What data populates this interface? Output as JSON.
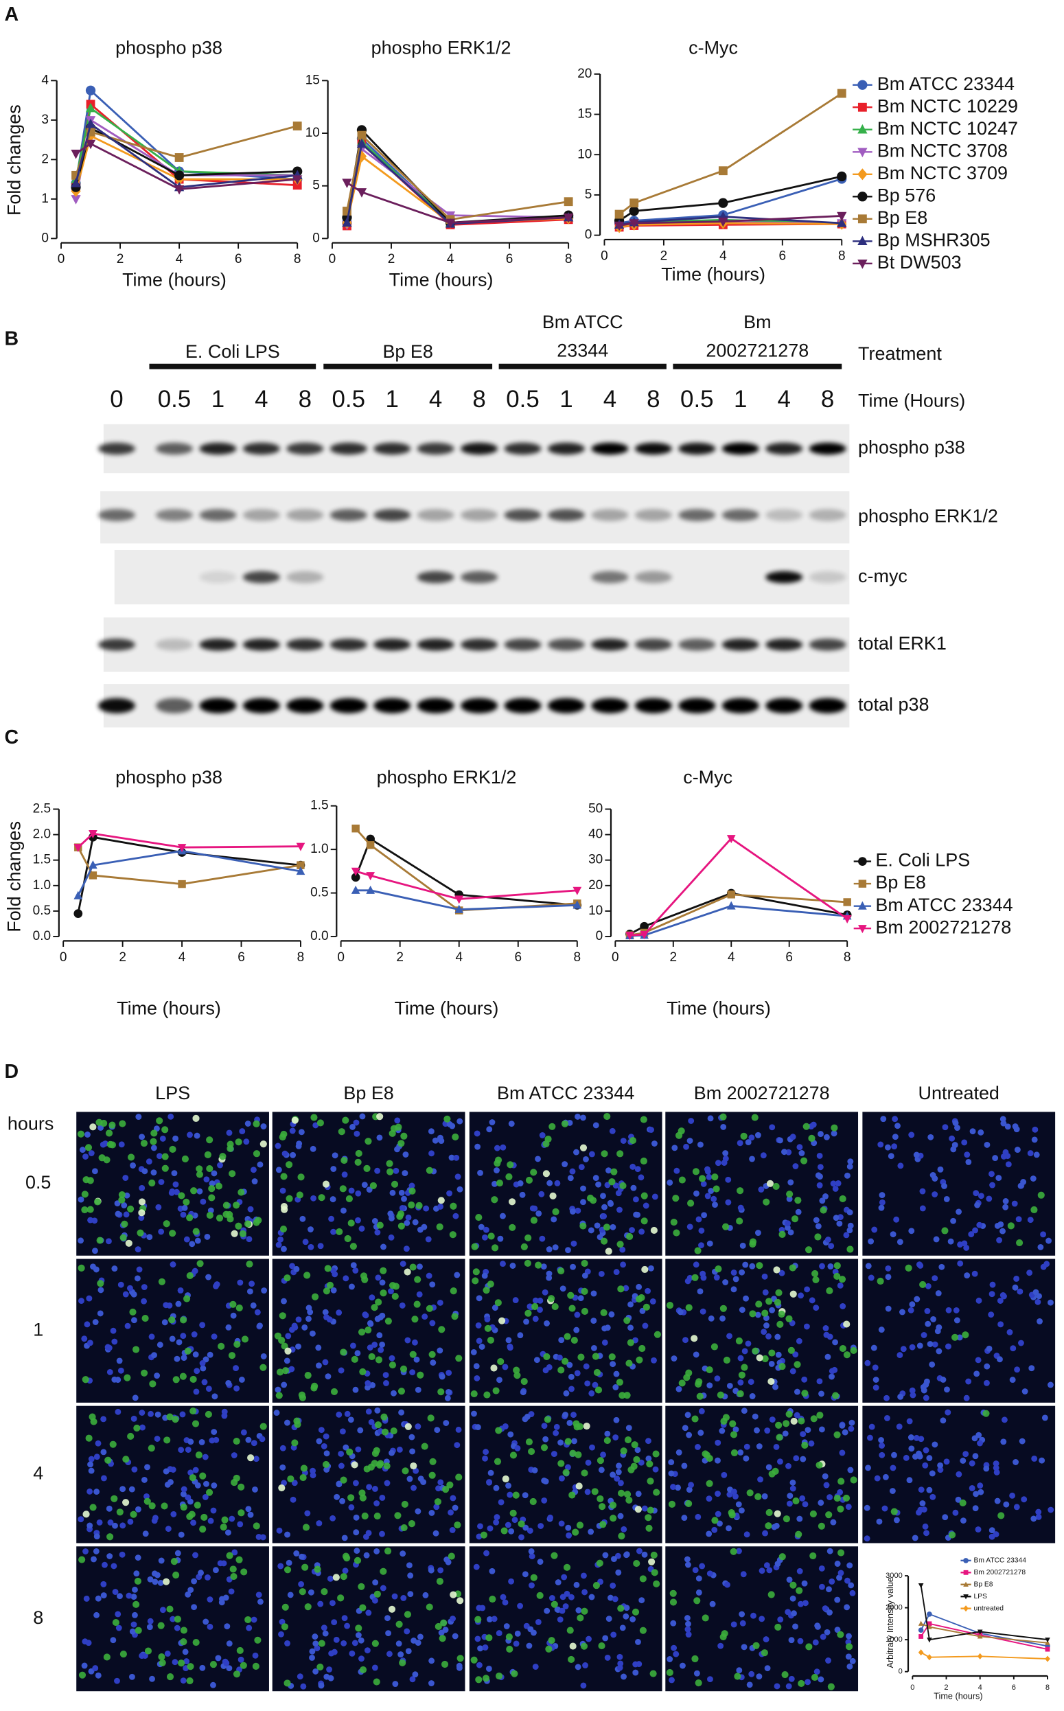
{
  "panel_labels": [
    "A",
    "B",
    "C",
    "D"
  ],
  "chart_data": [
    {
      "type": "line",
      "title": "phospho p38",
      "xlabel": "Time (hours)",
      "ylabel": "Fold changes",
      "x": [
        0.5,
        1,
        4,
        8
      ],
      "xlim": [
        0,
        8
      ],
      "xticks": [
        0,
        2,
        4,
        6,
        8
      ],
      "ylim": [
        0,
        4
      ],
      "yticks": [
        0,
        1,
        2,
        3,
        4
      ],
      "series": [
        {
          "color": "#3a5fb5",
          "marker": "circle",
          "values": [
            1.4,
            3.75,
            1.7,
            1.5
          ]
        },
        {
          "color": "#e8202a",
          "marker": "square",
          "values": [
            1.3,
            3.4,
            1.5,
            1.35
          ]
        },
        {
          "color": "#35b04a",
          "marker": "triangle",
          "values": [
            1.5,
            3.3,
            1.7,
            1.6
          ]
        },
        {
          "color": "#a05cc0",
          "marker": "triangle-down",
          "values": [
            1.0,
            3.0,
            1.6,
            1.6
          ]
        },
        {
          "color": "#f39a1e",
          "marker": "diamond",
          "values": [
            1.2,
            2.6,
            1.5,
            1.5
          ]
        },
        {
          "color": "#111111",
          "marker": "circle",
          "values": [
            1.3,
            2.8,
            1.6,
            1.7
          ]
        },
        {
          "color": "#a87a36",
          "marker": "square",
          "values": [
            1.6,
            2.7,
            2.05,
            2.85
          ]
        },
        {
          "color": "#2d2f7e",
          "marker": "triangle",
          "values": [
            1.4,
            2.9,
            1.3,
            1.6
          ]
        },
        {
          "color": "#6b1f5c",
          "marker": "triangle-down",
          "values": [
            2.15,
            2.4,
            1.25,
            1.5
          ]
        }
      ]
    },
    {
      "type": "line",
      "title": "phospho ERK1/2",
      "xlabel": "Time (hours)",
      "x": [
        0.5,
        1,
        4,
        8
      ],
      "xlim": [
        0,
        8
      ],
      "xticks": [
        0,
        2,
        4,
        6,
        8
      ],
      "ylim": [
        0,
        15
      ],
      "yticks": [
        0,
        5,
        10,
        15
      ],
      "series": [
        {
          "color": "#3a5fb5",
          "marker": "circle",
          "values": [
            1.5,
            9.5,
            1.5,
            2.0
          ]
        },
        {
          "color": "#e8202a",
          "marker": "square",
          "values": [
            1.2,
            9.0,
            1.3,
            1.8
          ]
        },
        {
          "color": "#35b04a",
          "marker": "triangle",
          "values": [
            1.5,
            9.2,
            1.5,
            2.0
          ]
        },
        {
          "color": "#a05cc0",
          "marker": "triangle-down",
          "values": [
            1.3,
            8.5,
            2.2,
            2.0
          ]
        },
        {
          "color": "#f39a1e",
          "marker": "diamond",
          "values": [
            1.5,
            7.8,
            1.5,
            1.9
          ]
        },
        {
          "color": "#111111",
          "marker": "circle",
          "values": [
            2.0,
            10.3,
            1.5,
            2.2
          ]
        },
        {
          "color": "#a87a36",
          "marker": "square",
          "values": [
            2.6,
            9.8,
            1.8,
            3.5
          ]
        },
        {
          "color": "#2d2f7e",
          "marker": "triangle",
          "values": [
            1.5,
            9.0,
            1.4,
            2.0
          ]
        },
        {
          "color": "#6b1f5c",
          "marker": "triangle-down",
          "values": [
            5.3,
            4.4,
            1.5,
            2.0
          ]
        }
      ]
    },
    {
      "type": "line",
      "title": "c-Myc",
      "xlabel": "Time (hours)",
      "legend": "right",
      "x": [
        0.5,
        1,
        4,
        8
      ],
      "xlim": [
        0,
        8
      ],
      "xticks": [
        0,
        2,
        4,
        6,
        8
      ],
      "ylim": [
        0,
        20
      ],
      "yticks": [
        0,
        5,
        10,
        15,
        20
      ],
      "series": [
        {
          "name": "Bm ATCC 23344",
          "color": "#3a5fb5",
          "marker": "circle",
          "values": [
            1.5,
            1.8,
            2.5,
            7.0
          ]
        },
        {
          "name": "Bm NCTC 10229",
          "color": "#e8202a",
          "marker": "square",
          "values": [
            1.0,
            1.2,
            1.3,
            1.4
          ]
        },
        {
          "name": "Bm NCTC 10247",
          "color": "#35b04a",
          "marker": "triangle",
          "values": [
            1.3,
            1.6,
            1.9,
            1.5
          ]
        },
        {
          "name": "Bm NCTC 3708",
          "color": "#a05cc0",
          "marker": "triangle-down",
          "values": [
            1.2,
            1.4,
            1.6,
            1.5
          ]
        },
        {
          "name": "Bm NCTC 3709",
          "color": "#f39a1e",
          "marker": "diamond",
          "values": [
            1.0,
            1.3,
            1.5,
            1.4
          ]
        },
        {
          "name": "Bp 576",
          "color": "#111111",
          "marker": "circle",
          "values": [
            1.8,
            3.0,
            4.0,
            7.3
          ]
        },
        {
          "name": "Bp E8",
          "color": "#a87a36",
          "marker": "square",
          "values": [
            2.6,
            4.0,
            8.0,
            17.6
          ]
        },
        {
          "name": "Bp MSHR305",
          "color": "#2d2f7e",
          "marker": "triangle",
          "values": [
            1.3,
            1.6,
            2.3,
            1.5
          ]
        },
        {
          "name": "Bt DW503",
          "color": "#6b1f5c",
          "marker": "triangle-down",
          "values": [
            1.2,
            1.5,
            1.7,
            2.4
          ]
        }
      ]
    },
    {
      "type": "line",
      "title": "phospho p38",
      "xlabel": "Time (hours)",
      "ylabel": "Fold changes",
      "x": [
        0.5,
        1,
        4,
        8
      ],
      "xlim": [
        0,
        8
      ],
      "xticks": [
        0,
        2,
        4,
        6,
        8
      ],
      "ylim": [
        0,
        2.5
      ],
      "yticks": [
        {
          "value": 0,
          "label": "0.0"
        },
        0.5,
        {
          "value": 1,
          "label": "1.0"
        },
        1.5,
        {
          "value": 2,
          "label": "2.0"
        },
        2.5
      ],
      "series": [
        {
          "color": "#111111",
          "marker": "circle",
          "values": [
            0.45,
            1.95,
            1.65,
            1.4
          ]
        },
        {
          "color": "#a87a36",
          "marker": "square",
          "values": [
            1.75,
            1.2,
            1.03,
            1.4
          ]
        },
        {
          "color": "#3a5fb5",
          "marker": "triangle",
          "values": [
            0.8,
            1.4,
            1.68,
            1.28
          ]
        },
        {
          "color": "#e6157f",
          "marker": "triangle-down",
          "values": [
            1.75,
            2.02,
            1.75,
            1.77
          ]
        }
      ]
    },
    {
      "type": "line",
      "title": "phospho ERK1/2",
      "xlabel": "Time (hours)",
      "x": [
        0.5,
        1,
        4,
        8
      ],
      "xlim": [
        0,
        8
      ],
      "xticks": [
        0,
        2,
        4,
        6,
        8
      ],
      "ylim": [
        0,
        1.5
      ],
      "yticks": [
        {
          "value": 0,
          "label": "0.0"
        },
        0.5,
        {
          "value": 1,
          "label": "1.0"
        },
        1.5
      ],
      "series": [
        {
          "color": "#111111",
          "marker": "circle",
          "values": [
            0.68,
            1.12,
            0.48,
            0.36
          ]
        },
        {
          "color": "#a87a36",
          "marker": "square",
          "values": [
            1.24,
            1.05,
            0.3,
            0.38
          ]
        },
        {
          "color": "#3a5fb5",
          "marker": "triangle",
          "values": [
            0.53,
            0.53,
            0.31,
            0.36
          ]
        },
        {
          "color": "#e6157f",
          "marker": "triangle-down",
          "values": [
            0.75,
            0.7,
            0.43,
            0.53
          ]
        }
      ]
    },
    {
      "type": "line",
      "title": "c-Myc",
      "xlabel": "Time (hours)",
      "legend": "right",
      "x": [
        0.5,
        1,
        4,
        8
      ],
      "xlim": [
        0,
        8
      ],
      "xticks": [
        0,
        2,
        4,
        6,
        8
      ],
      "ylim": [
        0,
        50
      ],
      "yticks": [
        0,
        10,
        20,
        30,
        40,
        50
      ],
      "series": [
        {
          "name": "E. Coli LPS",
          "color": "#111111",
          "marker": "circle",
          "values": [
            1.0,
            4.0,
            17.0,
            8.5
          ]
        },
        {
          "name": "Bp E8",
          "color": "#a87a36",
          "marker": "square",
          "values": [
            0.5,
            1.5,
            16.5,
            13.5
          ]
        },
        {
          "name": "Bm ATCC 23344",
          "color": "#3a5fb5",
          "marker": "triangle",
          "values": [
            0.3,
            0.5,
            12.0,
            8.0
          ]
        },
        {
          "name": "Bm 2002721278",
          "color": "#e6157f",
          "marker": "triangle-down",
          "values": [
            0.5,
            0.8,
            38.5,
            7.0
          ]
        }
      ]
    },
    {
      "type": "line",
      "xlabel": "Time (hours)",
      "ylabel": "Arbitrary Intensity value",
      "legend": "upper right",
      "x": [
        0.5,
        1,
        4,
        8
      ],
      "xlim": [
        0,
        8
      ],
      "xticks": [
        0,
        2,
        4,
        6,
        8
      ],
      "ylim": [
        0,
        3000
      ],
      "yticks": [
        0,
        1000,
        2000,
        3000
      ],
      "series": [
        {
          "name": "Bm ATCC 23344",
          "color": "#3a5fb5",
          "marker": "circle",
          "values": [
            1300,
            1800,
            1200,
            800
          ]
        },
        {
          "name": "Bm 2002721278",
          "color": "#e6157f",
          "marker": "square",
          "values": [
            1100,
            1500,
            1150,
            700
          ]
        },
        {
          "name": "Bp E8",
          "color": "#a87a36",
          "marker": "triangle",
          "values": [
            1500,
            1400,
            1100,
            900
          ]
        },
        {
          "name": "LPS",
          "color": "#111111",
          "marker": "triangle-down",
          "values": [
            2700,
            1000,
            1250,
            1000
          ]
        },
        {
          "name": "untreated",
          "color": "#f39a1e",
          "marker": "diamond",
          "values": [
            600,
            450,
            480,
            400
          ]
        }
      ]
    }
  ],
  "blot": {
    "groups": [
      [
        "E. Coli LPS"
      ],
      [
        "Bp E8"
      ],
      [
        "Bm ATCC",
        "23344"
      ],
      [
        "Bm",
        "2002721278"
      ]
    ],
    "treatment_label": "Treatment",
    "times": [
      "0",
      "0.5",
      "1",
      "4",
      "8",
      "0.5",
      "1",
      "4",
      "8",
      "0.5",
      "1",
      "4",
      "8",
      "0.5",
      "1",
      "4",
      "8"
    ],
    "time_label": "Time (Hours)",
    "rows": [
      "phospho p38",
      "phospho ERK1/2",
      "c-myc",
      "total ERK1",
      "total p38"
    ]
  },
  "microscopy": {
    "columns": [
      "LPS",
      "Bp E8",
      "Bm ATCC 23344",
      "Bm 2002721278",
      "Untreated"
    ],
    "row_header": "hours",
    "rows": [
      "0.5",
      "1",
      "4",
      "8"
    ]
  }
}
